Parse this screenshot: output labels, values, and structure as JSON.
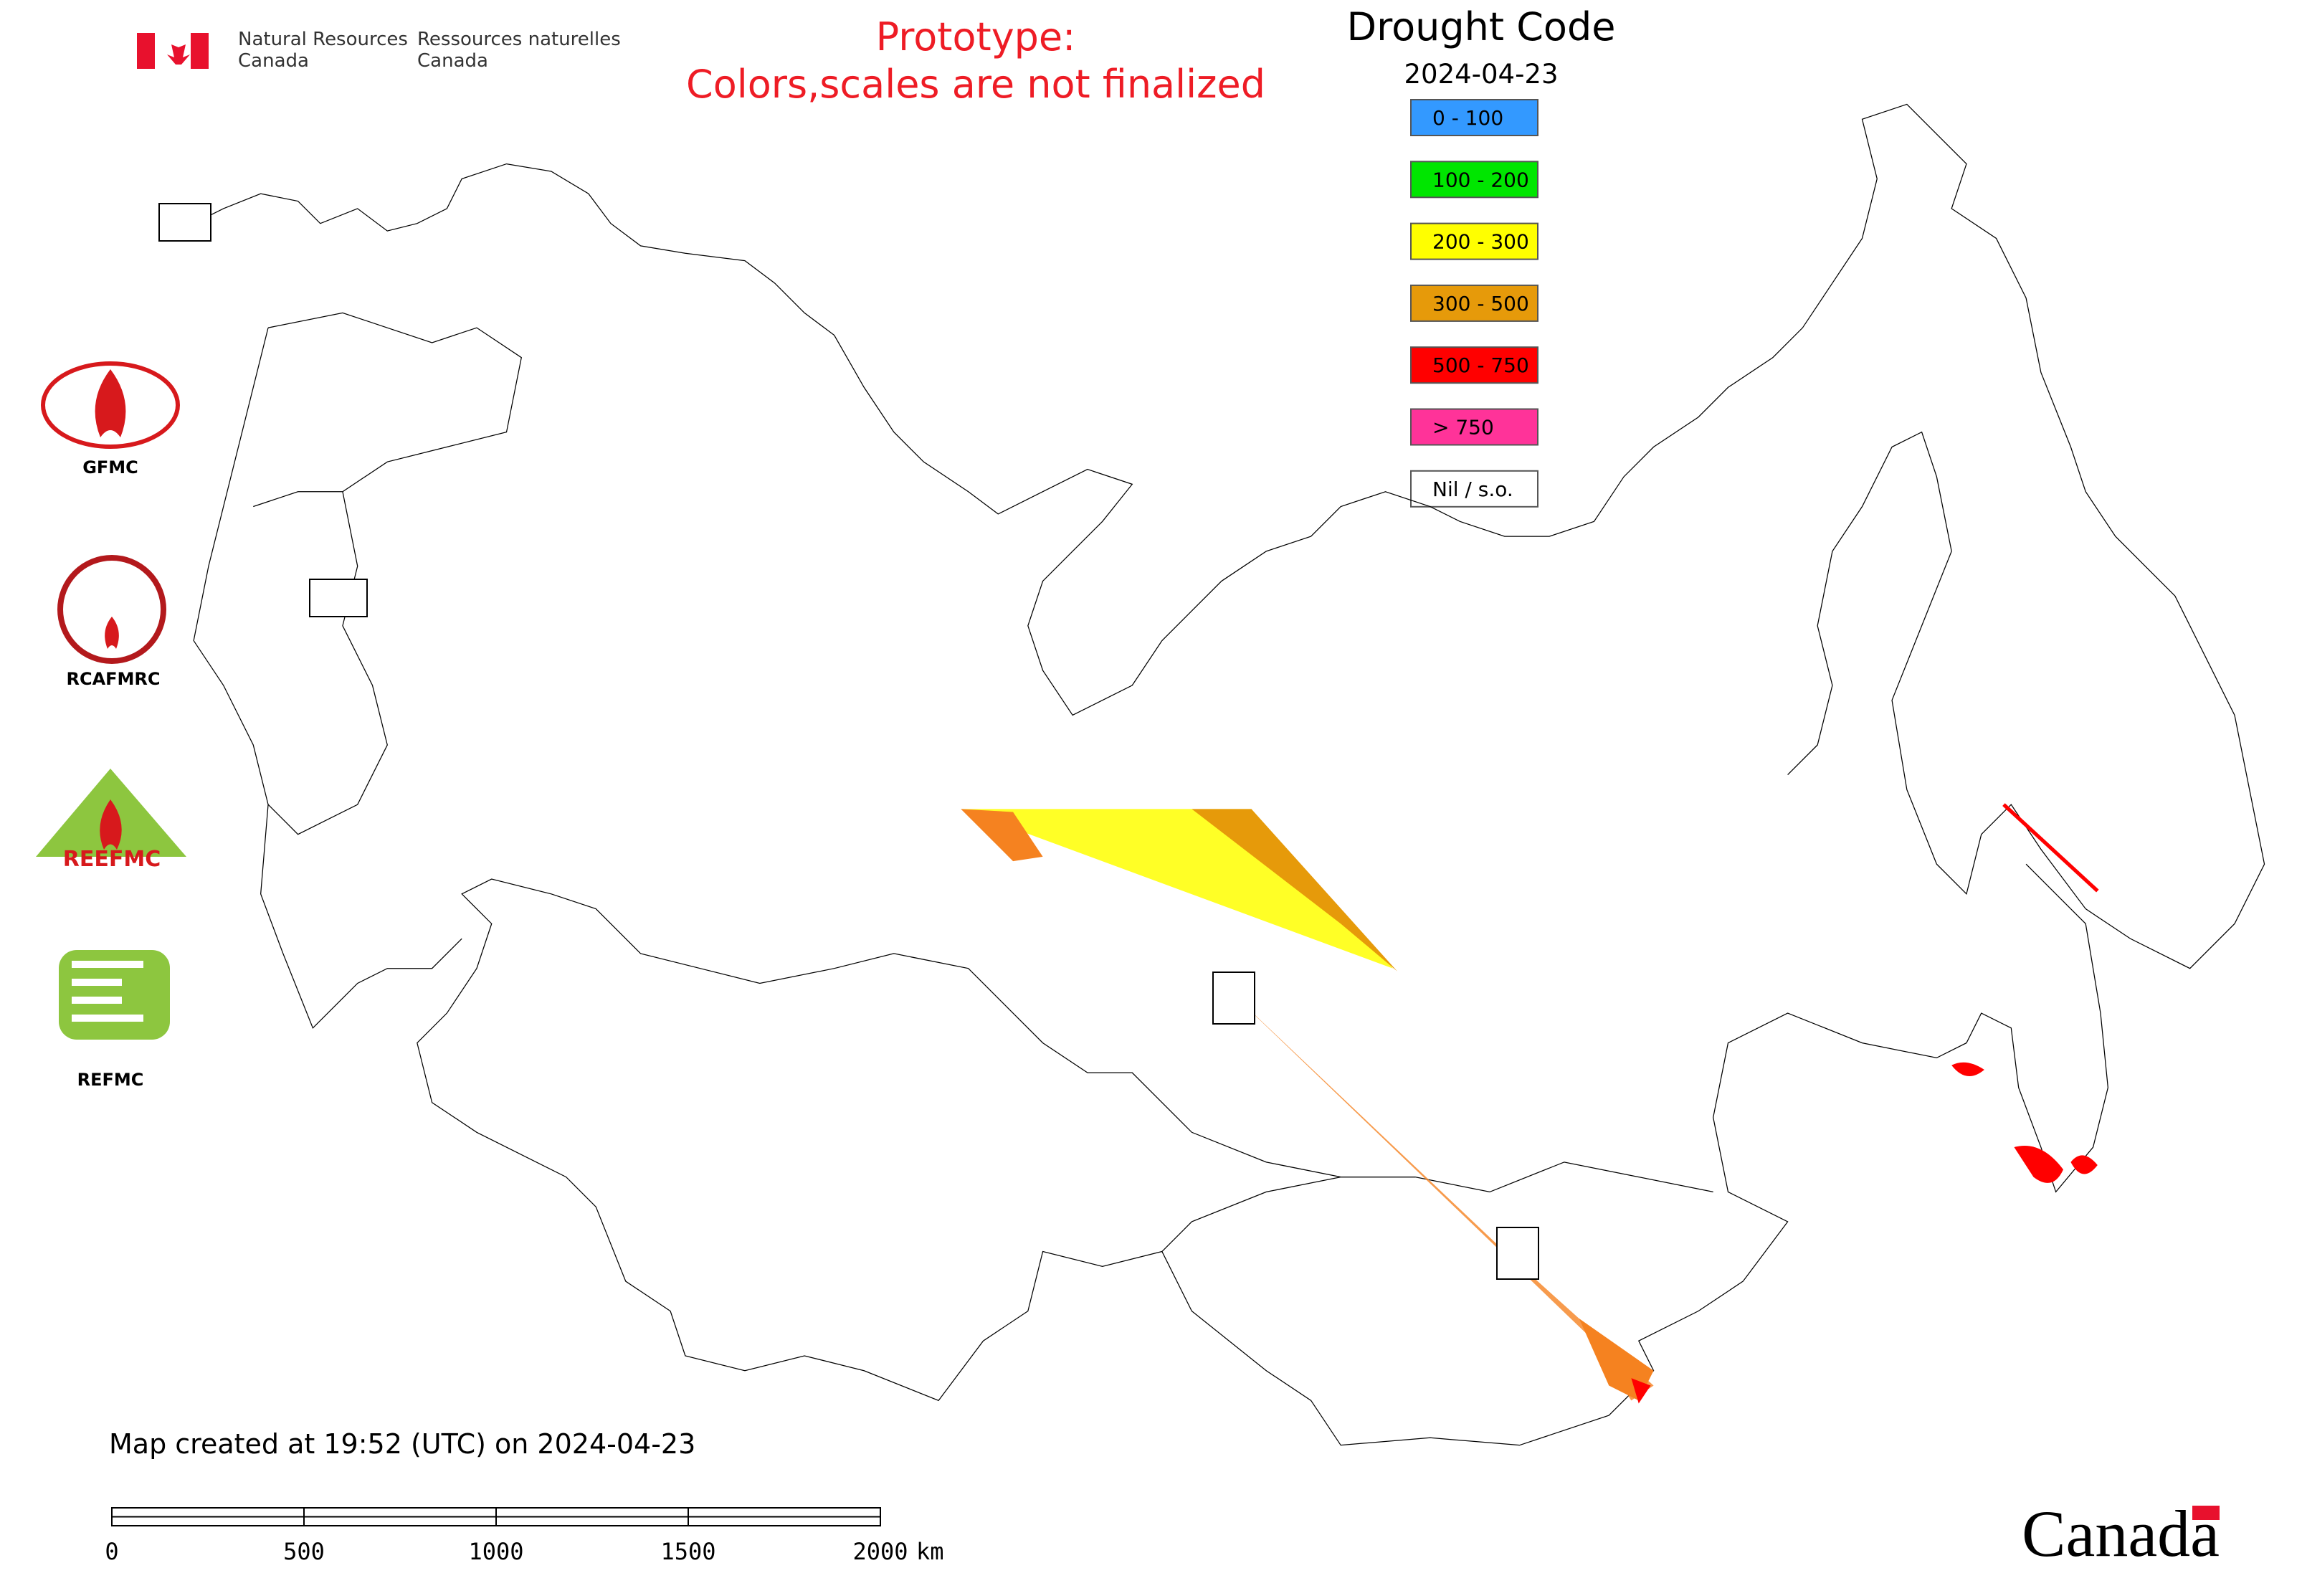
{
  "header": {
    "agency_en": [
      "Natural Resources",
      "Canada"
    ],
    "agency_fr": [
      "Ressources naturelles",
      "Canada"
    ],
    "notice": [
      "Prototype:",
      "Colors,scales are not finalized"
    ]
  },
  "legend": {
    "title": "Drought Code",
    "date": "2024-04-23",
    "items": [
      {
        "label": "0 - 100",
        "color": "#3399ff"
      },
      {
        "label": "100 - 200",
        "color": "#00e600"
      },
      {
        "label": "200 - 300",
        "color": "#ffff00"
      },
      {
        "label": "300 - 500",
        "color": "#e69a0a"
      },
      {
        "label": "500 - 750",
        "color": "#ff0000"
      },
      {
        "label": "> 750",
        "color": "#ff3399"
      },
      {
        "label": "Nil / s.o.",
        "color": "#ffffff"
      }
    ]
  },
  "logos": [
    "GFMC",
    "RCAFMRC",
    "REEFMC",
    "REFMC"
  ],
  "footer": {
    "created": "Map created at 19:52 (UTC) on 2024-04-23",
    "wordmark": "Canada"
  },
  "scale_bar": {
    "ticks": [
      0,
      500,
      1000,
      1500,
      2000
    ],
    "unit": "km"
  }
}
